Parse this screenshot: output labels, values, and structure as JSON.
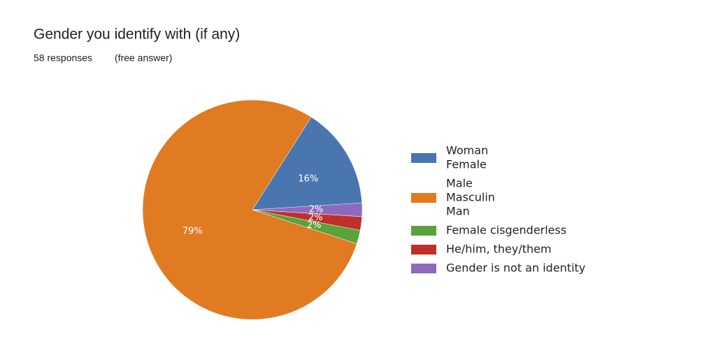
{
  "chart_data": {
    "type": "pie",
    "title": "Gender you identify with (if any)",
    "subtitle": "58 responses",
    "annotation": "(free answer)",
    "categories": [
      [
        "Woman",
        "Female"
      ],
      [
        "Male",
        "Masculin",
        "Man"
      ],
      [
        "Female cisgenderless"
      ],
      [
        "He/him, they/them"
      ],
      [
        "Gender is not an identity"
      ]
    ],
    "values": [
      16,
      79,
      2,
      2,
      2
    ],
    "value_labels": [
      "16%",
      "79%",
      "2%",
      "2%",
      "2%"
    ],
    "colors": [
      "#4a76b0",
      "#e07b22",
      "#5aa33a",
      "#c0302b",
      "#8c6bbf"
    ],
    "legend": "right"
  }
}
